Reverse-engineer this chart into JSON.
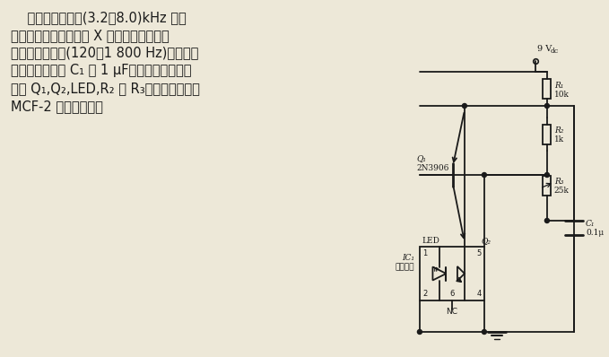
{
  "bg_color": "#ede8d8",
  "text_content": "    本电路可以覆盖(3.2～8.0)kHz 的频\n率范围。可激励插接在 X 点的扬声器。为了\n得到较低的频率(120～1 800 Hz)和较大的\n声音，需要改变 C₁ 为 1 μF。电路的负阔部分\n包括 Q₁,Q₂,LED,R₂ 和 R₃。光隔离器件为\nMCF-2 或等效元件。",
  "text_fontsize": 10.5,
  "text_color": "#1a1a1a",
  "line_color": "#1a1a1a",
  "lw": 1.3,
  "vcc_label": "9 V",
  "vcc_sub": "dc",
  "r1_label": "R₁",
  "r1_val": "10k",
  "r2_label": "R₂",
  "r2_val": "1k",
  "r3_label": "R₃",
  "r3_val": "25k",
  "c1_label": "C₁",
  "c1_val": "0.1μ",
  "q1_label": "Q₁",
  "q1_val": "2N3906",
  "ic1_label": "IC₁",
  "ic1_val": "光隔离器",
  "led_label": "LED",
  "q2_label": "Q₂",
  "nc_label": "NC"
}
